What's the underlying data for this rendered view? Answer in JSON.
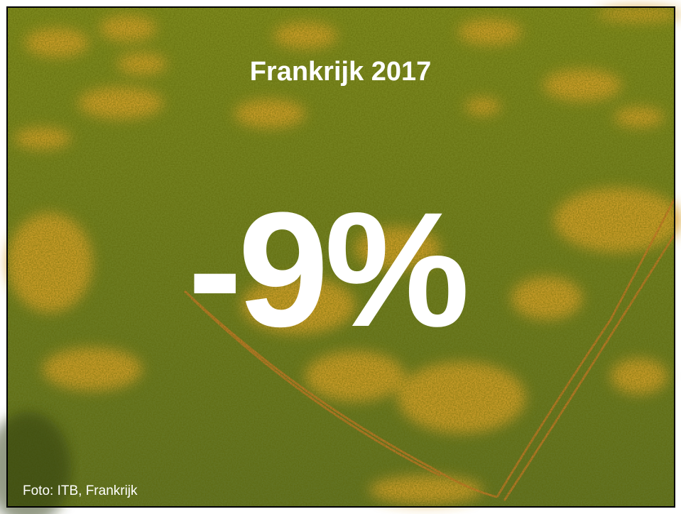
{
  "slide": {
    "title": "Frankrijk 2017",
    "headline": "-9%",
    "credit": "Foto: ITB, Frankrijk"
  }
}
